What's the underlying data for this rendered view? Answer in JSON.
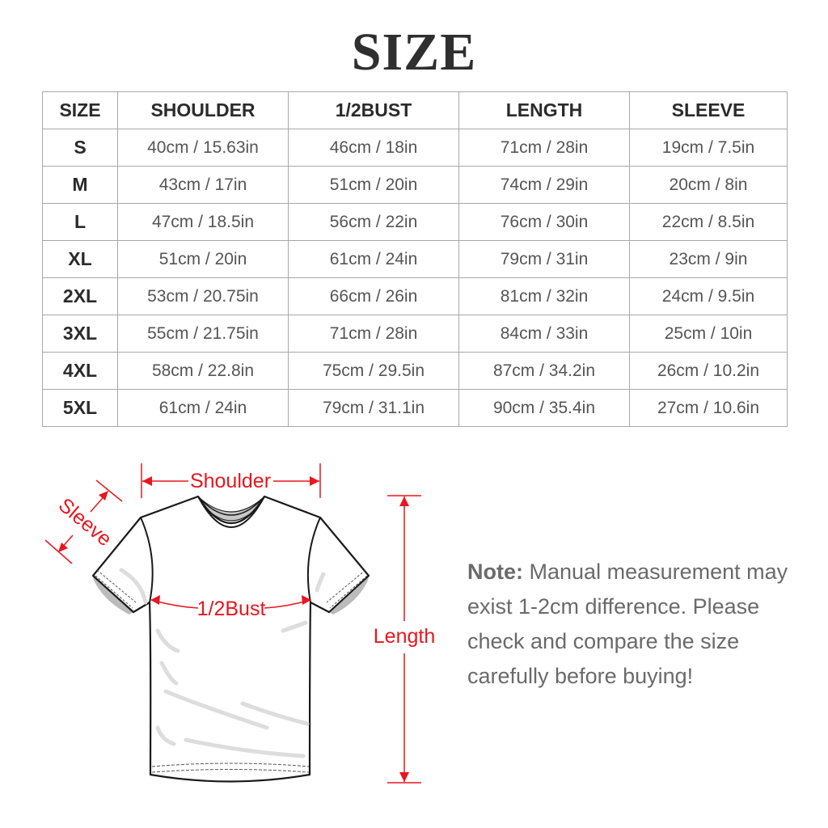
{
  "title": "SIZE",
  "table": {
    "headers": [
      "SIZE",
      "SHOULDER",
      "1/2BUST",
      "LENGTH",
      "SLEEVE"
    ],
    "rows": [
      [
        "S",
        "40cm / 15.63in",
        "46cm / 18in",
        "71cm / 28in",
        "19cm / 7.5in"
      ],
      [
        "M",
        "43cm / 17in",
        "51cm / 20in",
        "74cm / 29in",
        "20cm / 8in"
      ],
      [
        "L",
        "47cm / 18.5in",
        "56cm / 22in",
        "76cm / 30in",
        "22cm / 8.5in"
      ],
      [
        "XL",
        "51cm / 20in",
        "61cm / 24in",
        "79cm / 31in",
        "23cm / 9in"
      ],
      [
        "2XL",
        "53cm / 20.75in",
        "66cm / 26in",
        "81cm / 32in",
        "24cm / 9.5in"
      ],
      [
        "3XL",
        "55cm / 21.75in",
        "71cm / 28in",
        "84cm / 33in",
        "25cm / 10in"
      ],
      [
        "4XL",
        "58cm / 22.8in",
        "75cm / 29.5in",
        "87cm / 34.2in",
        "26cm / 10.2in"
      ],
      [
        "5XL",
        "61cm / 24in",
        "79cm / 31.1in",
        "90cm / 35.4in",
        "27cm / 10.6in"
      ]
    ]
  },
  "diagram": {
    "labels": {
      "shoulder": "Shoulder",
      "sleeve": "Sleeve",
      "bust": "1/2Bust",
      "length": "Length"
    },
    "measure_color": "#e8161f"
  },
  "note": {
    "label": "Note:",
    "text": "Manual measurement may exist 1-2cm difference. Please check and compare the size carefully before buying!"
  }
}
